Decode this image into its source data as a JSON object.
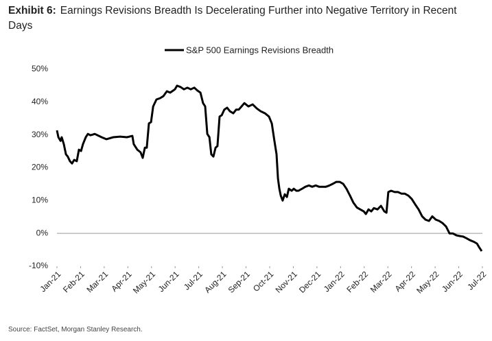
{
  "chart_data": {
    "type": "line",
    "exhibit": "Exhibit 6:",
    "title": "Earnings Revisions Breadth Is Decelerating Further into Negative Territory in Recent Days",
    "source": "Source: FactSet, Morgan Stanley Research.",
    "xlim": [
      0,
      18
    ],
    "xticks": [
      {
        "value": 0,
        "label": "Jan-21"
      },
      {
        "value": 1,
        "label": "Feb-21"
      },
      {
        "value": 2,
        "label": "Mar-21"
      },
      {
        "value": 3,
        "label": "Apr-21"
      },
      {
        "value": 4,
        "label": "May-21"
      },
      {
        "value": 5,
        "label": "Jun-21"
      },
      {
        "value": 6,
        "label": "Jul-21"
      },
      {
        "value": 7,
        "label": "Aug-21"
      },
      {
        "value": 8,
        "label": "Sep-21"
      },
      {
        "value": 9,
        "label": "Oct-21"
      },
      {
        "value": 10,
        "label": "Nov-21"
      },
      {
        "value": 11,
        "label": "Dec-21"
      },
      {
        "value": 12,
        "label": "Jan-22"
      },
      {
        "value": 13,
        "label": "Feb-22"
      },
      {
        "value": 14,
        "label": "Mar-22"
      },
      {
        "value": 15,
        "label": "Apr-22"
      },
      {
        "value": 16,
        "label": "May-22"
      },
      {
        "value": 17,
        "label": "Jun-22"
      },
      {
        "value": 18,
        "label": "Jul-22"
      }
    ],
    "ylim": [
      -10,
      50
    ],
    "yticks": [
      {
        "value": -10,
        "label": "-10%"
      },
      {
        "value": 0,
        "label": "0%"
      },
      {
        "value": 10,
        "label": "10%"
      },
      {
        "value": 20,
        "label": "20%"
      },
      {
        "value": 30,
        "label": "30%"
      },
      {
        "value": 40,
        "label": "40%"
      },
      {
        "value": 50,
        "label": "50%"
      }
    ],
    "grid": false,
    "zero_line": true,
    "legend": "top",
    "x": [
      0,
      0.06,
      0.15,
      0.2,
      0.29,
      0.38,
      0.46,
      0.55,
      0.64,
      0.73,
      0.84,
      0.93,
      1.02,
      1.1,
      1.22,
      1.31,
      1.42,
      1.51,
      1.6,
      1.89,
      2.09,
      2.38,
      2.67,
      2.96,
      3.19,
      3.25,
      3.4,
      3.54,
      3.63,
      3.72,
      3.8,
      3.89,
      3.98,
      4.07,
      4.21,
      4.36,
      4.5,
      4.65,
      4.79,
      4.99,
      5.08,
      5.23,
      5.37,
      5.52,
      5.66,
      5.81,
      5.95,
      6.07,
      6.18,
      6.27,
      6.36,
      6.45,
      6.53,
      6.62,
      6.71,
      6.79,
      6.88,
      6.97,
      7.08,
      7.2,
      7.32,
      7.46,
      7.58,
      7.69,
      7.81,
      7.93,
      8.1,
      8.28,
      8.45,
      8.62,
      8.8,
      8.97,
      9.09,
      9.2,
      9.29,
      9.35,
      9.41,
      9.47,
      9.55,
      9.64,
      9.73,
      9.81,
      9.93,
      10.02,
      10.13,
      10.22,
      10.37,
      10.51,
      10.66,
      10.8,
      10.95,
      11.09,
      11.24,
      11.38,
      11.53,
      11.67,
      11.82,
      11.96,
      12.11,
      12.25,
      12.4,
      12.54,
      12.69,
      12.83,
      12.98,
      13.07,
      13.18,
      13.3,
      13.41,
      13.56,
      13.71,
      13.85,
      13.94,
      14.02,
      14.14,
      14.29,
      14.43,
      14.58,
      14.72,
      14.87,
      15.01,
      15.16,
      15.3,
      15.45,
      15.59,
      15.74,
      15.88,
      16.03,
      16.17,
      16.32,
      16.46,
      16.61,
      16.75,
      16.9,
      17.04,
      17.19,
      17.33,
      17.48,
      17.62,
      17.77,
      17.86,
      17.97
    ],
    "series": [
      {
        "name": "S&P 500 Earnings Revisions Breadth",
        "color": "#000000",
        "values": [
          31.4,
          29.3,
          28.2,
          29.3,
          27.2,
          24.1,
          23.4,
          22,
          21.3,
          22.4,
          22,
          25.5,
          25.1,
          27.2,
          29.3,
          30.3,
          29.9,
          30.1,
          30.3,
          29.3,
          28.7,
          29.3,
          29.5,
          29.3,
          29.7,
          27.2,
          25.5,
          24.7,
          23,
          26.1,
          26.1,
          33.5,
          33.9,
          38.7,
          40.8,
          41.2,
          41.8,
          43.3,
          42.9,
          43.9,
          45,
          44.6,
          43.9,
          44.4,
          43.9,
          44.4,
          43.5,
          42.9,
          39.7,
          38.7,
          30.3,
          29.3,
          24.1,
          23.4,
          26.1,
          26.6,
          35.6,
          36,
          37.7,
          38.3,
          37.2,
          36.6,
          37.7,
          37.7,
          38.7,
          39.7,
          38.7,
          39.3,
          38.1,
          37.2,
          36.6,
          35.6,
          33.5,
          28.2,
          24.1,
          16.7,
          13.6,
          11.5,
          10,
          11.9,
          11.1,
          13.6,
          13,
          13.6,
          13,
          13,
          13.6,
          14.2,
          14.6,
          14.2,
          14.6,
          14.2,
          14.2,
          14.2,
          14.6,
          15.1,
          15.7,
          15.7,
          15.1,
          13.6,
          11.5,
          9.4,
          7.9,
          7.3,
          6.7,
          5.9,
          7.3,
          6.7,
          7.7,
          7.3,
          8.4,
          6.7,
          6.3,
          12.6,
          13,
          12.6,
          12.6,
          12.1,
          12.1,
          11.5,
          10.5,
          8.8,
          7.3,
          5.2,
          4.2,
          3.8,
          5.2,
          4.2,
          3.8,
          3.1,
          2.1,
          0,
          0,
          -0.6,
          -0.8,
          -1,
          -1.5,
          -2.1,
          -2.5,
          -3.1,
          -4.2,
          -5.4
        ]
      }
    ]
  }
}
